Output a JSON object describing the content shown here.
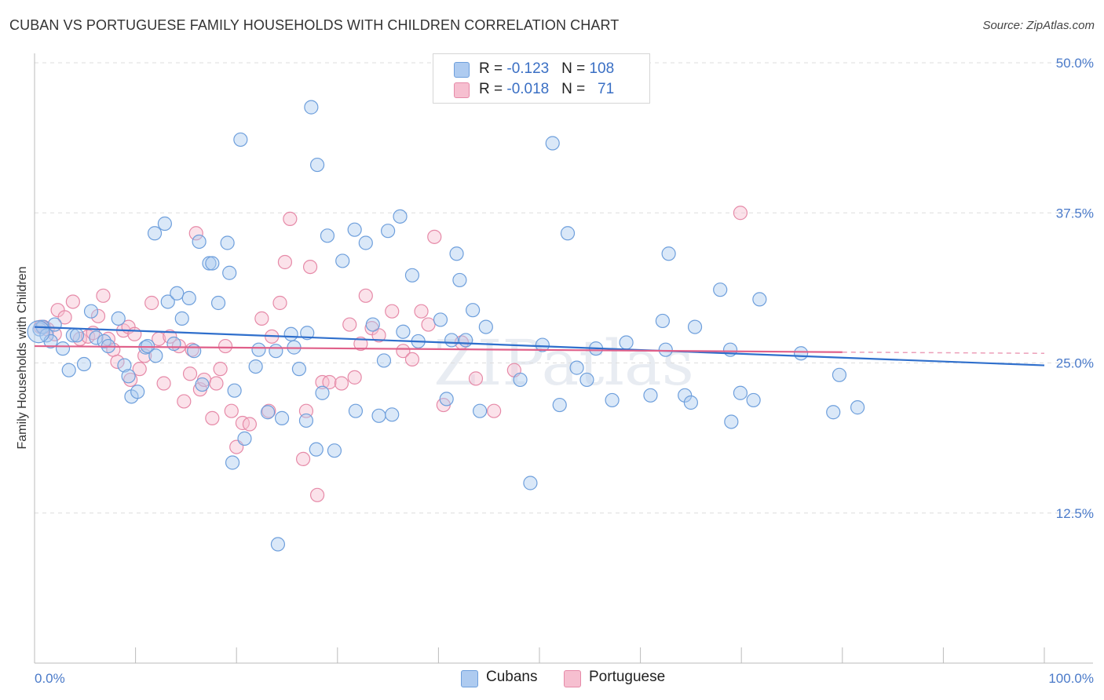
{
  "title": "CUBAN VS PORTUGUESE FAMILY HOUSEHOLDS WITH CHILDREN CORRELATION CHART",
  "source": "Source: ZipAtlas.com",
  "watermark": "ZIPatlas",
  "legend": {
    "rows": [
      {
        "r_label": "R = ",
        "r_value": "-0.123",
        "n_label": "N = ",
        "n_value": "108"
      },
      {
        "r_label": "R = ",
        "r_value": "-0.018",
        "n_label": "N = ",
        "n_value": "71"
      }
    ]
  },
  "colors": {
    "cubans_fill": "#aecbf0",
    "cubans_stroke": "#6e9fdc",
    "cubans_line": "#2f6fcc",
    "portuguese_fill": "#f6bfd0",
    "portuguese_stroke": "#e68aa8",
    "portuguese_line": "#e0608a",
    "tick_text": "#4a7ac9",
    "grid": "#dddddd"
  },
  "chart_data": {
    "type": "scatter",
    "title": "CUBAN VS PORTUGUESE FAMILY HOUSEHOLDS WITH CHILDREN CORRELATION CHART",
    "xlabel": "",
    "ylabel": "Family Households with Children",
    "xlim": [
      0,
      100
    ],
    "ylim": [
      0,
      50
    ],
    "x_tick_labels": [
      "0.0%",
      "100.0%"
    ],
    "y_ticks": [
      12.5,
      25.0,
      37.5,
      50.0
    ],
    "y_tick_labels": [
      "12.5%",
      "25.0%",
      "37.5%",
      "50.0%"
    ],
    "grid": true,
    "legend_position": "top-center",
    "series": [
      {
        "name": "Cubans",
        "r": -0.123,
        "n": 108,
        "trend": {
          "x": [
            0,
            100
          ],
          "y": [
            28.0,
            24.8
          ]
        },
        "points": [
          [
            0.5,
            27.8
          ],
          [
            0.8,
            28.0
          ],
          [
            1.2,
            27.3
          ],
          [
            1.6,
            26.8
          ],
          [
            2.0,
            28.2
          ],
          [
            2.8,
            26.2
          ],
          [
            3.4,
            24.4
          ],
          [
            3.8,
            27.3
          ],
          [
            4.2,
            27.3
          ],
          [
            4.9,
            24.9
          ],
          [
            5.6,
            29.3
          ],
          [
            6.1,
            27.1
          ],
          [
            6.9,
            26.8
          ],
          [
            7.3,
            26.4
          ],
          [
            8.3,
            28.7
          ],
          [
            8.9,
            24.8
          ],
          [
            9.3,
            23.9
          ],
          [
            9.6,
            22.2
          ],
          [
            10.2,
            22.6
          ],
          [
            11.0,
            26.3
          ],
          [
            11.2,
            26.4
          ],
          [
            12.0,
            25.6
          ],
          [
            11.9,
            35.8
          ],
          [
            12.9,
            36.6
          ],
          [
            13.2,
            30.1
          ],
          [
            14.1,
            30.8
          ],
          [
            13.8,
            26.6
          ],
          [
            14.6,
            28.7
          ],
          [
            15.3,
            30.4
          ],
          [
            15.8,
            26.0
          ],
          [
            16.3,
            35.1
          ],
          [
            16.6,
            23.2
          ],
          [
            17.3,
            33.3
          ],
          [
            17.6,
            33.3
          ],
          [
            18.2,
            30.0
          ],
          [
            19.1,
            35.0
          ],
          [
            19.6,
            16.7
          ],
          [
            19.3,
            32.5
          ],
          [
            19.8,
            22.7
          ],
          [
            20.4,
            43.6
          ],
          [
            20.8,
            18.7
          ],
          [
            21.9,
            24.7
          ],
          [
            22.2,
            26.1
          ],
          [
            23.1,
            20.9
          ],
          [
            23.9,
            26.0
          ],
          [
            24.1,
            9.9
          ],
          [
            24.5,
            20.4
          ],
          [
            25.4,
            27.4
          ],
          [
            25.7,
            26.3
          ],
          [
            26.2,
            24.5
          ],
          [
            26.9,
            20.2
          ],
          [
            27.4,
            46.3
          ],
          [
            28.0,
            41.5
          ],
          [
            27.9,
            17.8
          ],
          [
            28.5,
            22.5
          ],
          [
            29.0,
            35.6
          ],
          [
            29.7,
            17.7
          ],
          [
            30.5,
            33.5
          ],
          [
            31.7,
            36.1
          ],
          [
            31.8,
            21.0
          ],
          [
            32.8,
            35.0
          ],
          [
            33.5,
            28.2
          ],
          [
            34.1,
            20.6
          ],
          [
            34.6,
            25.2
          ],
          [
            35.0,
            36.0
          ],
          [
            35.4,
            20.7
          ],
          [
            36.2,
            37.2
          ],
          [
            37.4,
            32.3
          ],
          [
            38.0,
            26.8
          ],
          [
            40.2,
            28.6
          ],
          [
            40.8,
            22.0
          ],
          [
            41.3,
            26.9
          ],
          [
            41.8,
            34.1
          ],
          [
            42.1,
            31.9
          ],
          [
            42.7,
            26.9
          ],
          [
            43.4,
            29.4
          ],
          [
            44.1,
            21.0
          ],
          [
            44.7,
            28.0
          ],
          [
            48.1,
            23.6
          ],
          [
            49.1,
            15.0
          ],
          [
            50.3,
            26.5
          ],
          [
            51.3,
            43.3
          ],
          [
            52.0,
            21.5
          ],
          [
            52.8,
            35.8
          ],
          [
            53.7,
            24.6
          ],
          [
            54.7,
            23.6
          ],
          [
            55.6,
            26.2
          ],
          [
            57.2,
            21.9
          ],
          [
            58.6,
            26.7
          ],
          [
            61.0,
            22.3
          ],
          [
            62.2,
            28.5
          ],
          [
            62.5,
            26.1
          ],
          [
            62.8,
            34.1
          ],
          [
            64.4,
            22.3
          ],
          [
            65.0,
            21.7
          ],
          [
            65.4,
            28.0
          ],
          [
            67.9,
            31.1
          ],
          [
            68.9,
            26.1
          ],
          [
            69.0,
            20.1
          ],
          [
            69.9,
            22.5
          ],
          [
            71.2,
            21.9
          ],
          [
            71.8,
            30.3
          ],
          [
            75.9,
            25.8
          ],
          [
            79.1,
            20.9
          ],
          [
            79.7,
            24.0
          ],
          [
            81.5,
            21.3
          ],
          [
            27.0,
            27.5
          ],
          [
            36.5,
            27.6
          ]
        ]
      },
      {
        "name": "Portuguese",
        "r": -0.018,
        "n": 71,
        "trend": {
          "x": [
            0,
            80
          ],
          "y": [
            26.4,
            25.9
          ]
        },
        "trend_dashed": {
          "x": [
            80,
            100
          ],
          "y": [
            25.9,
            25.8
          ]
        },
        "points": [
          [
            0.6,
            28.0
          ],
          [
            1.3,
            27.8
          ],
          [
            2.3,
            29.4
          ],
          [
            3.0,
            28.8
          ],
          [
            3.8,
            30.1
          ],
          [
            4.5,
            27.0
          ],
          [
            5.3,
            27.2
          ],
          [
            5.8,
            27.5
          ],
          [
            6.3,
            28.9
          ],
          [
            6.8,
            30.6
          ],
          [
            7.3,
            27.0
          ],
          [
            7.8,
            26.1
          ],
          [
            8.2,
            25.1
          ],
          [
            8.8,
            27.7
          ],
          [
            9.3,
            28.0
          ],
          [
            9.9,
            27.4
          ],
          [
            10.4,
            24.5
          ],
          [
            10.9,
            25.6
          ],
          [
            11.6,
            30.0
          ],
          [
            12.3,
            27.0
          ],
          [
            12.8,
            23.3
          ],
          [
            13.4,
            27.2
          ],
          [
            14.3,
            26.4
          ],
          [
            14.8,
            21.8
          ],
          [
            15.4,
            24.1
          ],
          [
            16.0,
            35.8
          ],
          [
            16.4,
            22.8
          ],
          [
            16.8,
            23.6
          ],
          [
            17.6,
            20.4
          ],
          [
            18.0,
            23.3
          ],
          [
            18.4,
            24.5
          ],
          [
            18.9,
            26.4
          ],
          [
            19.5,
            21.0
          ],
          [
            20.0,
            18.0
          ],
          [
            20.6,
            20.0
          ],
          [
            21.3,
            19.9
          ],
          [
            22.5,
            28.7
          ],
          [
            23.2,
            21.0
          ],
          [
            24.3,
            30.0
          ],
          [
            24.8,
            33.4
          ],
          [
            25.3,
            37.0
          ],
          [
            26.6,
            17.0
          ],
          [
            26.9,
            21.0
          ],
          [
            27.3,
            33.0
          ],
          [
            28.0,
            14.0
          ],
          [
            28.5,
            23.4
          ],
          [
            29.2,
            23.4
          ],
          [
            30.4,
            23.3
          ],
          [
            31.2,
            28.2
          ],
          [
            31.7,
            23.8
          ],
          [
            32.3,
            26.6
          ],
          [
            32.8,
            30.6
          ],
          [
            33.4,
            27.9
          ],
          [
            34.1,
            27.3
          ],
          [
            35.4,
            29.3
          ],
          [
            36.5,
            26.0
          ],
          [
            37.4,
            25.3
          ],
          [
            38.3,
            29.3
          ],
          [
            39.0,
            28.2
          ],
          [
            39.6,
            35.5
          ],
          [
            40.5,
            21.5
          ],
          [
            42.3,
            26.7
          ],
          [
            43.7,
            23.7
          ],
          [
            45.5,
            21.0
          ],
          [
            47.5,
            24.4
          ],
          [
            69.9,
            37.5
          ],
          [
            9.5,
            23.6
          ],
          [
            15.6,
            26.1
          ],
          [
            23.5,
            27.2
          ],
          [
            0.9,
            28.0
          ],
          [
            2.0,
            27.4
          ]
        ]
      }
    ]
  },
  "bottom_legend": [
    "Cubans",
    "Portuguese"
  ]
}
